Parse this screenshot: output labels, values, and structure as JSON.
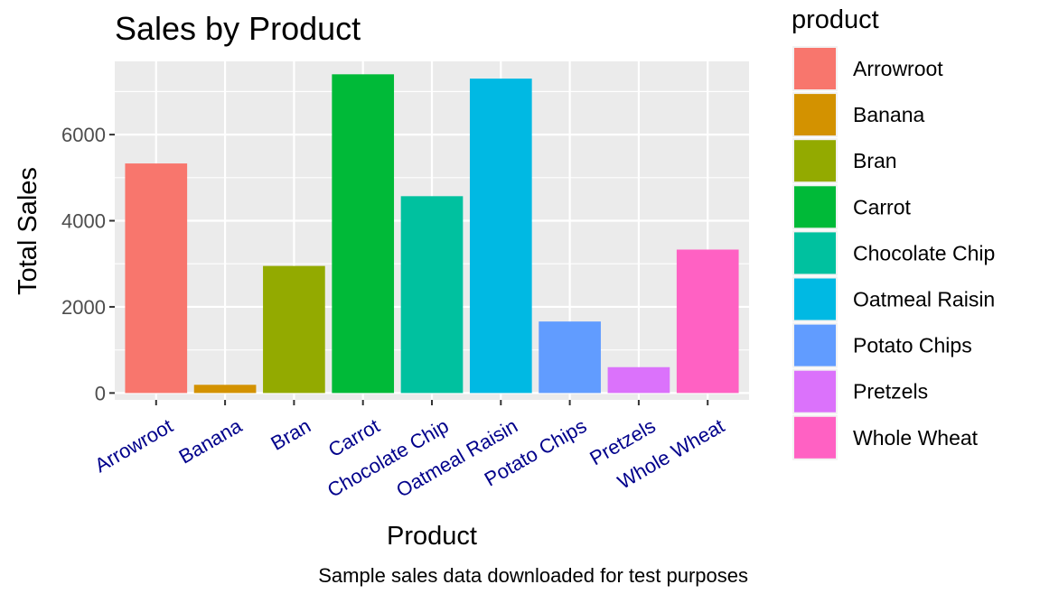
{
  "chart_data": {
    "type": "bar",
    "title": "Sales by Product",
    "xlabel": "Product",
    "ylabel": "Total Sales",
    "caption": "Sample sales data downloaded for test purposes",
    "categories": [
      "Arrowroot",
      "Banana",
      "Bran",
      "Carrot",
      "Chocolate Chip",
      "Oatmeal Raisin",
      "Potato Chips",
      "Pretzels",
      "Whole Wheat"
    ],
    "values": [
      5330,
      190,
      2950,
      7400,
      4570,
      7300,
      1660,
      600,
      3330
    ],
    "colors": [
      "#F8766D",
      "#D39200",
      "#93AA00",
      "#00BA38",
      "#00C19F",
      "#00B9E3",
      "#619CFF",
      "#DB72FB",
      "#FF61C3"
    ],
    "ylim": [
      -160,
      7700
    ],
    "yticks": [
      0,
      2000,
      4000,
      6000
    ],
    "grid": true,
    "panel_background": "#EBEBEB",
    "xtick_color": "#00008B",
    "legend": {
      "title": "product",
      "position": "right",
      "entries": [
        "Arrowroot",
        "Banana",
        "Bran",
        "Carrot",
        "Chocolate Chip",
        "Oatmeal Raisin",
        "Potato Chips",
        "Pretzels",
        "Whole Wheat"
      ]
    }
  }
}
